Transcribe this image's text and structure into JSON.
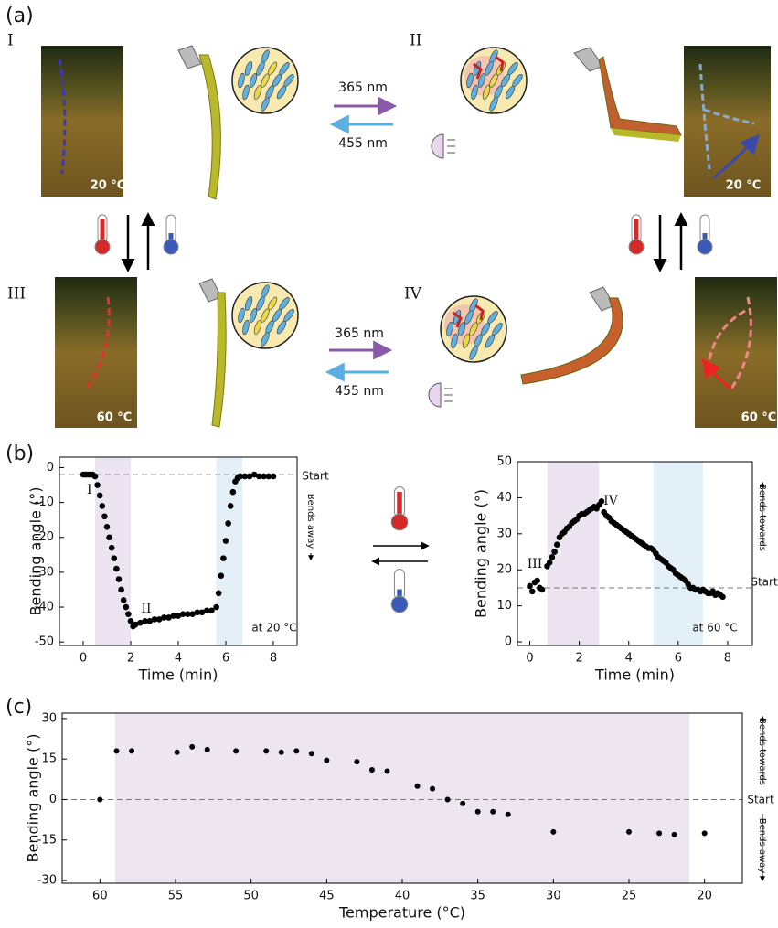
{
  "panel_a": {
    "label": "(a)",
    "states": [
      "I",
      "II",
      "III",
      "IV"
    ],
    "uv": "365 nm",
    "blue": "455 nm",
    "temps": [
      "20 °C",
      "20 °C",
      "60 °C",
      "60 °C"
    ]
  },
  "panel_labels": [
    "(b)",
    "(c)"
  ],
  "chart_data": [
    {
      "type": "scatter",
      "xlabel": "Time (min)",
      "ylabel": "Bending angle (°)",
      "xlim": [
        -1,
        9
      ],
      "ylim": [
        -51,
        3
      ],
      "xticks": [
        0,
        2,
        4,
        6,
        8
      ],
      "yticks": [
        0,
        -10,
        -20,
        -30,
        -40,
        -50
      ],
      "shaded": [
        {
          "x": [
            0.5,
            2.0
          ],
          "color": "#ece4f0"
        },
        {
          "x": [
            5.6,
            6.7
          ],
          "color": "#e3f0f8"
        }
      ],
      "start_line": -2,
      "start_label": "Start",
      "direction_labels": [
        "Bends away"
      ],
      "annotations": [
        "I",
        "II",
        "at 20 °C"
      ],
      "color": "#000000",
      "x": [
        0,
        0.1,
        0.2,
        0.3,
        0.4,
        0.5,
        0.6,
        0.7,
        0.8,
        0.9,
        1.0,
        1.1,
        1.2,
        1.3,
        1.4,
        1.5,
        1.6,
        1.7,
        1.8,
        1.9,
        2.0,
        2.1,
        2.2,
        2.4,
        2.6,
        2.8,
        3.0,
        3.2,
        3.4,
        3.6,
        3.8,
        4.0,
        4.2,
        4.4,
        4.6,
        4.8,
        5.0,
        5.2,
        5.4,
        5.6,
        5.7,
        5.8,
        5.9,
        6.0,
        6.1,
        6.2,
        6.3,
        6.4,
        6.5,
        6.6,
        6.8,
        7.0,
        7.2,
        7.4,
        7.6,
        7.8,
        8.0
      ],
      "values": [
        -2,
        -2,
        -2,
        -2,
        -2,
        -2.5,
        -5,
        -8,
        -11,
        -14,
        -17,
        -20,
        -23,
        -26,
        -29,
        -32,
        -35,
        -38,
        -40,
        -42,
        -44,
        -45.5,
        -45,
        -44.5,
        -44,
        -44,
        -43.5,
        -43.5,
        -43,
        -43,
        -42.5,
        -42.5,
        -42,
        -42,
        -42,
        -41.5,
        -41.5,
        -41,
        -41,
        -40,
        -36,
        -31,
        -26,
        -21,
        -16,
        -11,
        -7,
        -4,
        -3,
        -2.5,
        -2.5,
        -2.5,
        -2,
        -2.5,
        -2.5,
        -2.5,
        -2.5
      ]
    },
    {
      "type": "scatter",
      "xlabel": "Time (min)",
      "ylabel": "Bending angle (°)",
      "xlim": [
        -0.5,
        9
      ],
      "ylim": [
        -1,
        50
      ],
      "xticks": [
        0,
        2,
        4,
        6,
        8
      ],
      "yticks": [
        0,
        10,
        20,
        30,
        40,
        50
      ],
      "shaded": [
        {
          "x": [
            0.7,
            2.8
          ],
          "color": "#ece4f0"
        },
        {
          "x": [
            5.0,
            7.0
          ],
          "color": "#e3f0f8"
        }
      ],
      "start_line": 15,
      "start_label": "Start",
      "direction_labels": [
        "Bends towards"
      ],
      "annotations": [
        "III",
        "IV",
        "at 60 °C"
      ],
      "color": "#000000",
      "x": [
        0,
        0.1,
        0.2,
        0.3,
        0.4,
        0.5,
        0.7,
        0.8,
        0.9,
        1.0,
        1.1,
        1.2,
        1.3,
        1.4,
        1.5,
        1.6,
        1.7,
        1.8,
        1.9,
        2.0,
        2.1,
        2.2,
        2.3,
        2.4,
        2.5,
        2.6,
        2.7,
        2.8,
        2.9,
        3.0,
        3.1,
        3.2,
        3.3,
        3.4,
        3.5,
        3.6,
        3.7,
        3.8,
        3.9,
        4.0,
        4.1,
        4.2,
        4.3,
        4.4,
        4.5,
        4.6,
        4.7,
        4.8,
        4.9,
        5.0,
        5.1,
        5.2,
        5.3,
        5.4,
        5.5,
        5.6,
        5.7,
        5.8,
        5.9,
        6.0,
        6.1,
        6.2,
        6.3,
        6.4,
        6.5,
        6.6,
        6.7,
        6.8,
        6.9,
        7.0,
        7.1,
        7.2,
        7.3,
        7.4,
        7.5,
        7.6,
        7.7,
        7.8
      ],
      "values": [
        15.5,
        14,
        16.5,
        17,
        15,
        14.5,
        21,
        22,
        23.5,
        25,
        27,
        29,
        30,
        30.5,
        31.5,
        32,
        33,
        33.5,
        34,
        35,
        35.5,
        35.5,
        36,
        36.5,
        37,
        37.5,
        37,
        38,
        39,
        36,
        35,
        34.5,
        33.5,
        33,
        32.5,
        32,
        31.5,
        31,
        30.5,
        30,
        29.5,
        29,
        28.5,
        28,
        27.5,
        27,
        26.5,
        26,
        26,
        25.5,
        24.5,
        23.5,
        23,
        22.5,
        22,
        21,
        20.5,
        20,
        19,
        18.5,
        18,
        17.5,
        17,
        16,
        15,
        15,
        14.5,
        14.5,
        14,
        14.5,
        14,
        13.5,
        13.5,
        14,
        13,
        13.5,
        13,
        12.5
      ]
    },
    {
      "type": "scatter",
      "xlabel": "Temperature (°C)",
      "ylabel": "Bending angle (°)",
      "xlim": [
        62.5,
        17.5
      ],
      "ylim": [
        -31,
        32
      ],
      "xticks": [
        60,
        55,
        50,
        45,
        40,
        35,
        30,
        25,
        20
      ],
      "yticks": [
        30,
        15,
        0,
        -15,
        -30
      ],
      "shaded": [
        {
          "x": [
            59,
            21
          ],
          "color": "#ede6f1"
        }
      ],
      "start_line": 0,
      "start_label": "Start",
      "direction_labels": [
        "Bends towards",
        "Bends away"
      ],
      "annotations": [],
      "color": "#000000",
      "x": [
        60,
        58.9,
        57.9,
        54.9,
        53.9,
        52.9,
        51,
        49,
        48,
        47,
        46,
        45,
        43,
        42,
        41,
        39,
        38,
        37,
        36,
        35,
        34,
        33,
        30,
        25,
        23,
        22,
        20
      ],
      "values": [
        0,
        18,
        18,
        17.5,
        19.5,
        18.5,
        18,
        18,
        17.5,
        18,
        17,
        14.5,
        14,
        11,
        10.5,
        5,
        4,
        0,
        -1.5,
        -4.5,
        -4.5,
        -5.5,
        -12,
        -12,
        -12.5,
        -13,
        -12.5
      ]
    }
  ]
}
